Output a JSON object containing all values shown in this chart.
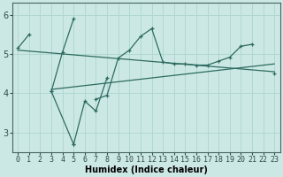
{
  "xlabel": "Humidex (Indice chaleur)",
  "x_values": [
    0,
    1,
    2,
    3,
    4,
    5,
    6,
    7,
    8,
    9,
    10,
    11,
    12,
    13,
    14,
    15,
    16,
    17,
    18,
    19,
    20,
    21,
    22,
    23
  ],
  "line_zigzag": [
    5.15,
    5.5,
    null,
    4.05,
    5.05,
    5.9,
    null,
    3.85,
    3.95,
    4.9,
    5.1,
    5.45,
    5.65,
    4.8,
    4.75,
    4.75,
    4.72,
    4.72,
    4.82,
    4.92,
    5.2,
    5.25,
    null,
    4.5
  ],
  "line_dip": [
    null,
    null,
    null,
    null,
    null,
    2.7,
    3.8,
    3.55,
    4.4,
    null,
    null,
    null,
    null,
    null,
    null,
    null,
    null,
    null,
    null,
    null,
    null,
    null,
    null,
    null
  ],
  "line_trend_start_x": 0,
  "line_trend_start_y": 5.1,
  "line_trend_end_x": 23,
  "line_trend_end_y": 4.55,
  "line_flat_start_x": 3,
  "line_flat_start_y": 4.1,
  "line_flat_end_x": 23,
  "line_flat_end_y": 4.75,
  "bg_color": "#cce8e4",
  "line_color": "#2d6b60",
  "grid_color": "#b0d8d2",
  "ylim": [
    2.5,
    6.3
  ],
  "yticks": [
    3,
    4,
    5,
    6
  ],
  "xlim": [
    -0.5,
    23.5
  ],
  "label_fontsize": 6.0,
  "tick_fontsize": 7.0
}
